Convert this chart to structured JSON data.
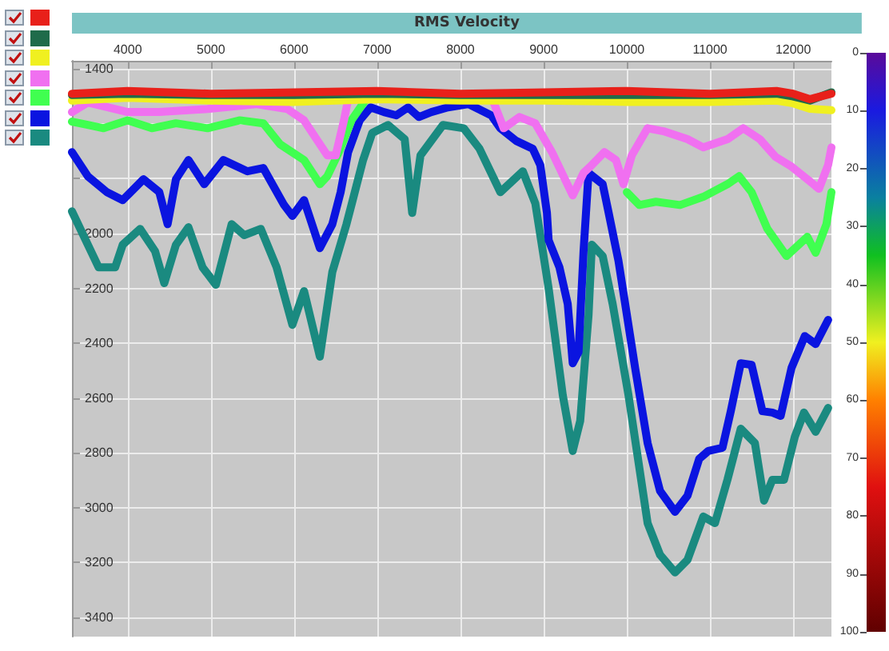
{
  "chart_data": {
    "type": "line",
    "title": "RMS Velocity",
    "xlim": [
      3330,
      12460
    ],
    "xticks": [
      4000,
      5000,
      6000,
      7000,
      8000,
      9000,
      10000,
      11000,
      12000
    ],
    "ylim": [
      3470,
      1370
    ],
    "yticks": [
      1400,
      {
        "value": 1600,
        "label": null
      },
      {
        "value": 1800,
        "label": null
      },
      2000,
      2200,
      2400,
      2600,
      2800,
      3000,
      3200,
      3400
    ],
    "clim": [
      0,
      100
    ],
    "cticks": [
      0,
      10,
      20,
      30,
      40,
      50,
      60,
      70,
      80,
      90,
      100
    ],
    "grid": true,
    "line_style": "solid",
    "series": [
      {
        "color": "#e8201a",
        "x": [
          3330,
          4000,
          5000,
          6000,
          7000,
          8000,
          9000,
          10000,
          11000,
          11800,
          12000,
          12200,
          12460
        ],
        "values": [
          1490,
          1480,
          1490,
          1485,
          1480,
          1490,
          1485,
          1480,
          1490,
          1480,
          1490,
          1510,
          1490
        ]
      },
      {
        "color": "#1f6b4a",
        "x": [
          3330,
          4000,
          5000,
          6000,
          7000,
          8000,
          9000,
          10000,
          11000,
          11800,
          12000,
          12200,
          12460
        ],
        "values": [
          1495,
          1490,
          1495,
          1495,
          1490,
          1495,
          1495,
          1495,
          1495,
          1490,
          1500,
          1515,
          1485
        ]
      },
      {
        "color": "#f0f020",
        "x": [
          3330,
          4000,
          5000,
          6000,
          7000,
          8000,
          9000,
          10000,
          11000,
          11800,
          12000,
          12200,
          12460
        ],
        "values": [
          1515,
          1505,
          1515,
          1520,
          1510,
          1515,
          1515,
          1520,
          1520,
          1515,
          1525,
          1545,
          1550
        ]
      },
      {
        "color": "#f070f0",
        "x": [
          3330,
          3520,
          4000,
          4380,
          4960,
          5540,
          5920,
          6120,
          6310,
          6400,
          6500,
          6600,
          6650,
          7500,
          8370,
          8520,
          8710,
          8900,
          9100,
          9350,
          9480,
          9580,
          9730,
          9870,
          9960,
          10060,
          10250,
          10440,
          10730,
          10920,
          11210,
          11400,
          11600,
          11790,
          11980,
          12170,
          12310,
          12420,
          12460
        ],
        "values": [
          1557,
          1522,
          1557,
          1557,
          1546,
          1528,
          1546,
          1587,
          1674,
          1715,
          1715,
          1587,
          1511,
          null,
          1499,
          1616,
          1575,
          1598,
          1703,
          1861,
          1779,
          1750,
          1703,
          1732,
          1820,
          1715,
          1616,
          1627,
          1656,
          1686,
          1656,
          1616,
          1656,
          1721,
          1756,
          1802,
          1837,
          1750,
          1686
        ]
      },
      {
        "color": "#40ff50",
        "x": [
          3330,
          3520,
          3710,
          4000,
          4290,
          4580,
          4960,
          5350,
          5630,
          5830,
          6120,
          6310,
          6400,
          6540,
          6690,
          6850,
          7500,
          10000,
          10150,
          10350,
          10640,
          10920,
          11210,
          11350,
          11500,
          11690,
          11920,
          12170,
          12270,
          12400,
          12460
        ],
        "values": [
          1592,
          1604,
          1616,
          1587,
          1616,
          1598,
          1616,
          1587,
          1598,
          1674,
          1732,
          1820,
          1791,
          1703,
          1587,
          1517,
          null,
          1849,
          1896,
          1884,
          1896,
          1866,
          1820,
          1791,
          1849,
          1983,
          2082,
          2012,
          2070,
          1966,
          1849
        ]
      },
      {
        "color": "#0a14e0",
        "x": [
          3330,
          3520,
          3750,
          3940,
          4190,
          4380,
          4480,
          4580,
          4730,
          4920,
          5150,
          5440,
          5630,
          5880,
          5980,
          6120,
          6310,
          6460,
          6560,
          6650,
          6790,
          6920,
          7080,
          7230,
          7370,
          7500,
          7650,
          7850,
          8100,
          8370,
          8480,
          8670,
          8870,
          8960,
          9040,
          9060,
          9190,
          9290,
          9350,
          9420,
          9480,
          9540,
          9710,
          9770,
          9900,
          10100,
          10250,
          10400,
          10580,
          10730,
          10870,
          10980,
          11150,
          11250,
          11370,
          11500,
          11630,
          11750,
          11850,
          11980,
          12140,
          12270,
          12420
        ],
        "values": [
          1703,
          1791,
          1849,
          1878,
          1802,
          1849,
          1966,
          1802,
          1732,
          1820,
          1732,
          1773,
          1761,
          1896,
          1936,
          1878,
          2053,
          1966,
          1849,
          1703,
          1587,
          1540,
          1557,
          1569,
          1540,
          1575,
          1557,
          1540,
          1528,
          1569,
          1616,
          1662,
          1691,
          1750,
          1925,
          2024,
          2123,
          2257,
          2473,
          2432,
          2065,
          1779,
          1820,
          1907,
          2100,
          2490,
          2764,
          2939,
          3015,
          2956,
          2822,
          2793,
          2781,
          2648,
          2473,
          2479,
          2648,
          2653,
          2665,
          2490,
          2374,
          2403,
          2315
        ]
      },
      {
        "color": "#1a8a80",
        "x": [
          3330,
          3650,
          3850,
          3940,
          4150,
          4330,
          4440,
          4580,
          4730,
          4900,
          5060,
          5250,
          5400,
          5600,
          5790,
          5980,
          6120,
          6310,
          6460,
          6630,
          6830,
          6940,
          7130,
          7330,
          7420,
          7520,
          7790,
          8040,
          8230,
          8480,
          8750,
          8900,
          9060,
          9230,
          9350,
          9440,
          9540,
          9580,
          9710,
          9830,
          10020,
          10250,
          10400,
          10580,
          10730,
          10920,
          11060,
          11210,
          11370,
          11540,
          11650,
          11750,
          11890,
          12020,
          12130,
          12270,
          12420
        ],
        "values": [
          1919,
          2123,
          2123,
          2041,
          1983,
          2065,
          2181,
          2041,
          1977,
          2123,
          2187,
          1966,
          2006,
          1983,
          2123,
          2333,
          2210,
          2449,
          2140,
          1966,
          1732,
          1633,
          1604,
          1656,
          1925,
          1715,
          1604,
          1616,
          1691,
          1849,
          1773,
          1890,
          2199,
          2589,
          2793,
          2683,
          2298,
          2041,
          2082,
          2257,
          2589,
          3056,
          3172,
          3236,
          3190,
          3032,
          3056,
          2898,
          2712,
          2764,
          2974,
          2898,
          2898,
          2741,
          2653,
          2723,
          2636
        ]
      }
    ]
  }
}
